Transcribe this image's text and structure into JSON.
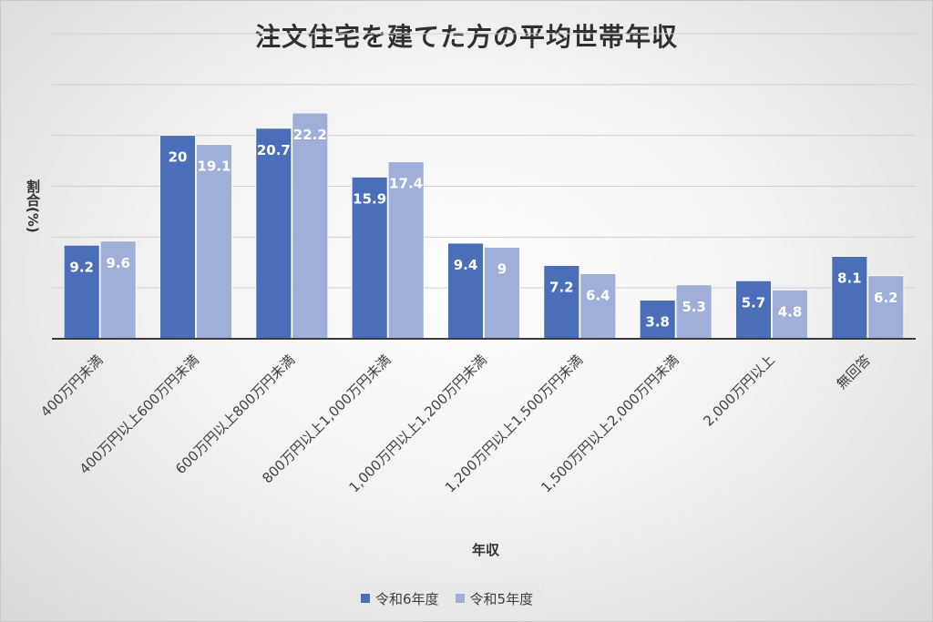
{
  "chart_data": {
    "type": "bar",
    "title": "注文住宅を建てた方の平均世帯年収",
    "xlabel": "年収",
    "ylabel": "割合(%)",
    "ylim": [
      0,
      30
    ],
    "grid": true,
    "legend_position": "bottom",
    "categories": [
      "400万円未満",
      "400万円以上600万円未満",
      "600万円以上800万円未満",
      "800万円以上1,000万円未満",
      "1,000万円以上1,200万円未満",
      "1,200万円以上1,500万円未満",
      "1,500万円以上2,000万円未満",
      "2,000万円以上",
      "無回答"
    ],
    "series": [
      {
        "name": "令和6年度",
        "color": "#4a6eb8",
        "values": [
          9.2,
          20,
          20.7,
          15.9,
          9.4,
          7.2,
          3.8,
          5.7,
          8.1
        ]
      },
      {
        "name": "令和5年度",
        "color": "#a0afd9",
        "values": [
          9.6,
          19.1,
          22.2,
          17.4,
          9,
          6.4,
          5.3,
          4.8,
          6.2
        ]
      }
    ]
  }
}
